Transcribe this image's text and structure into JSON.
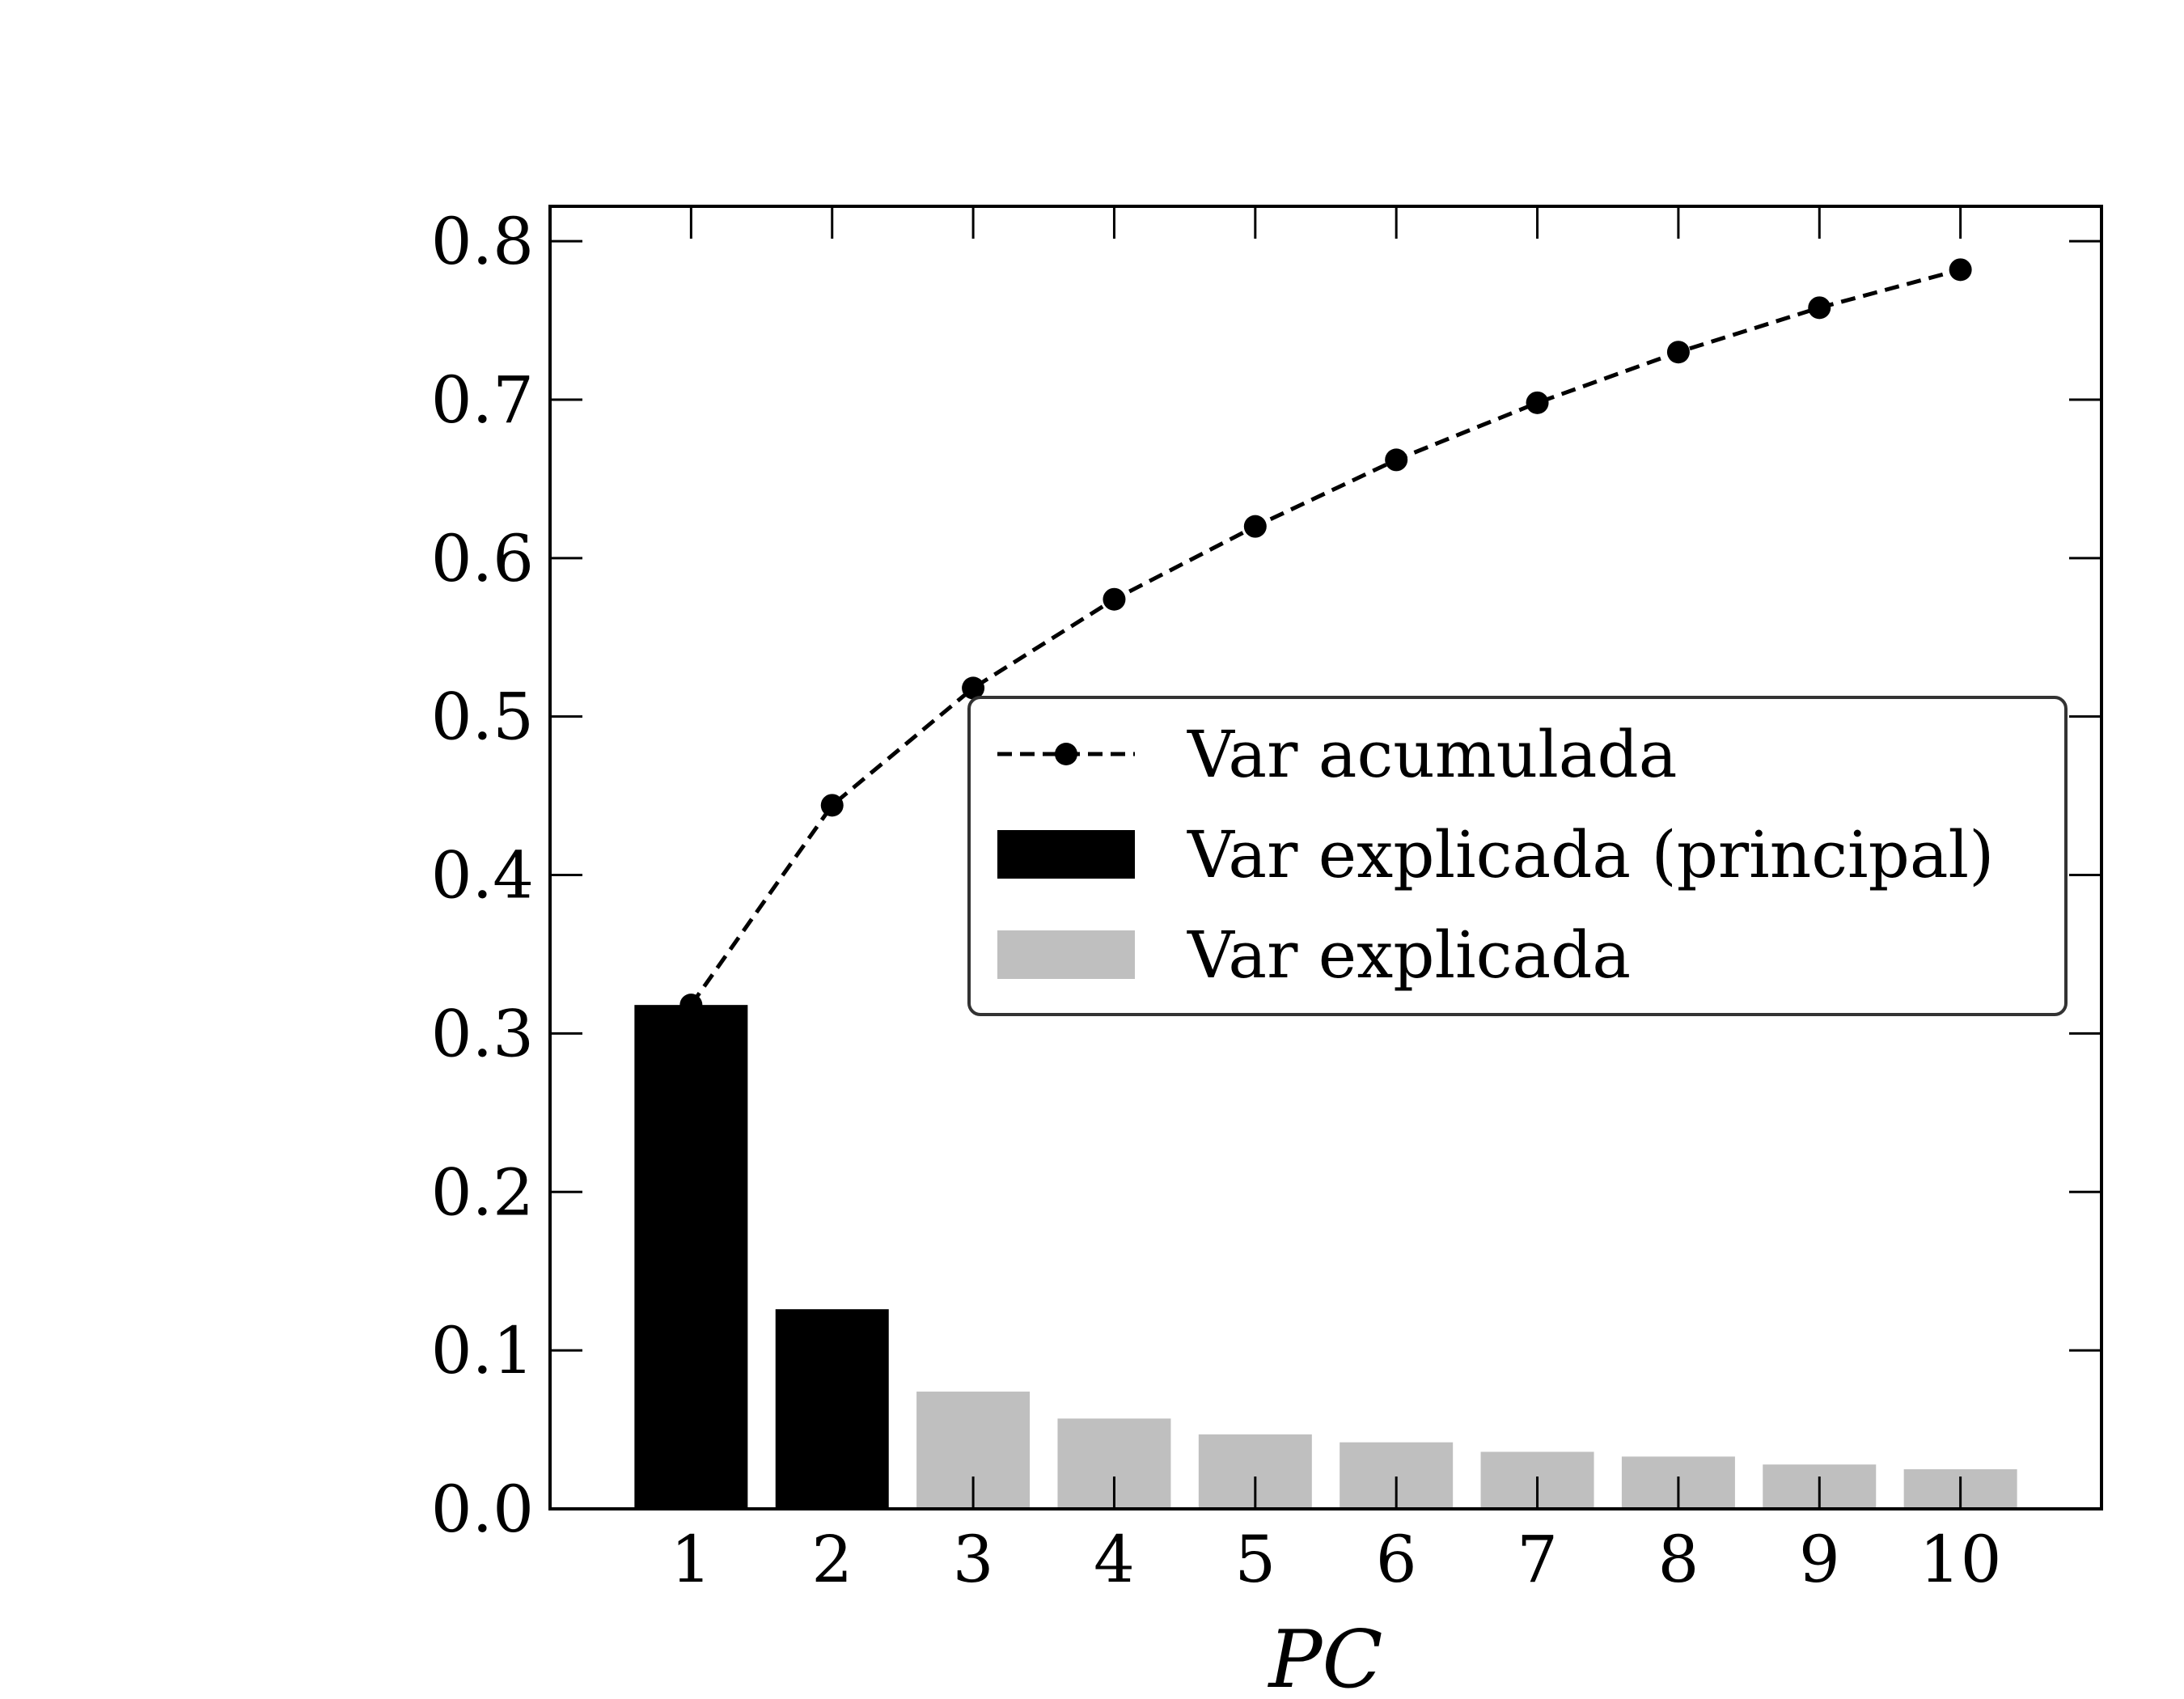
{
  "chart_data": {
    "type": "bar",
    "title": "",
    "xlabel": "PC",
    "ylabel": "",
    "categories": [
      "1",
      "2",
      "3",
      "4",
      "5",
      "6",
      "7",
      "8",
      "9",
      "10"
    ],
    "x": [
      1,
      2,
      3,
      4,
      5,
      6,
      7,
      8,
      9,
      10
    ],
    "xlim": [
      0.0,
      11.0
    ],
    "ylim": [
      0.0,
      0.822
    ],
    "yticks": [
      "0.0",
      "0.1",
      "0.2",
      "0.3",
      "0.4",
      "0.5",
      "0.6",
      "0.7",
      "0.8"
    ],
    "grid": false,
    "legend_position": "center-right",
    "series": [
      {
        "name": "Var explicada (principal)",
        "type": "bar",
        "color": "#000000",
        "x": [
          1,
          2
        ],
        "values": [
          0.318,
          0.126
        ]
      },
      {
        "name": "Var explicada",
        "type": "bar",
        "color": "#bfbfbf",
        "x": [
          3,
          4,
          5,
          6,
          7,
          8,
          9,
          10
        ],
        "values": [
          0.074,
          0.057,
          0.047,
          0.042,
          0.036,
          0.033,
          0.028,
          0.025
        ]
      },
      {
        "name": "Var acumulada",
        "type": "line",
        "style": "dashed",
        "marker": "circle",
        "color": "#000000",
        "x": [
          1,
          2,
          3,
          4,
          5,
          6,
          7,
          8,
          9,
          10
        ],
        "values": [
          0.318,
          0.444,
          0.518,
          0.574,
          0.62,
          0.662,
          0.698,
          0.73,
          0.758,
          0.782
        ]
      }
    ],
    "legend": [
      {
        "label": "Var acumulada",
        "kind": "line"
      },
      {
        "label": "Var explicada (principal)",
        "kind": "bar",
        "color": "#000000"
      },
      {
        "label": "Var explicada",
        "kind": "bar",
        "color": "#bfbfbf"
      }
    ]
  }
}
